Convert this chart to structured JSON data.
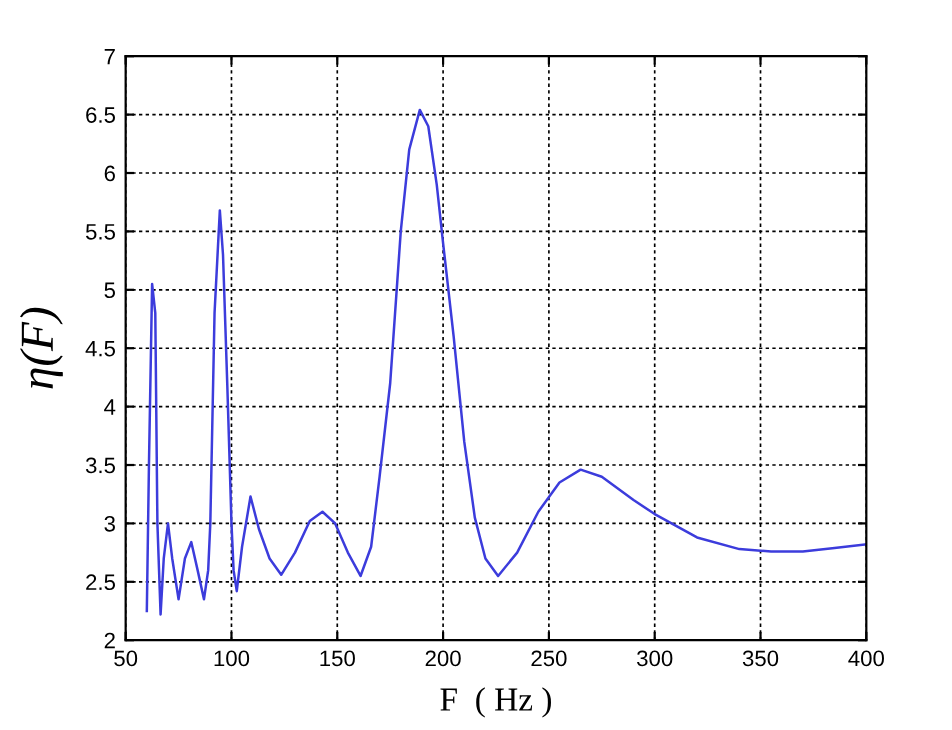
{
  "chart_data": {
    "type": "line",
    "xlabel": "F  ( Hz )",
    "ylabel": "η(F)",
    "x": [
      60,
      61,
      62.5,
      64,
      65,
      66.5,
      68,
      70,
      72,
      75,
      78,
      81,
      84,
      87,
      89,
      90,
      92,
      94.5,
      96,
      98,
      100,
      101,
      102.5,
      105,
      109,
      113,
      118,
      123.5,
      130,
      137,
      143,
      149,
      155,
      161,
      166,
      170,
      175,
      180,
      184,
      189,
      193,
      197,
      200,
      205,
      210,
      215,
      220,
      226,
      235,
      245,
      255,
      265,
      275,
      290,
      300,
      320,
      340,
      355,
      370,
      385,
      400
    ],
    "series": [
      {
        "color": "#3c3cdc",
        "values": [
          2.25,
          3.5,
          5.05,
          4.8,
          3.0,
          2.22,
          2.7,
          3.0,
          2.7,
          2.35,
          2.7,
          2.84,
          2.6,
          2.35,
          2.6,
          3.0,
          4.8,
          5.68,
          5.3,
          4.2,
          3.0,
          2.6,
          2.42,
          2.8,
          3.23,
          2.95,
          2.7,
          2.56,
          2.75,
          3.02,
          3.1,
          3.0,
          2.75,
          2.55,
          2.8,
          3.4,
          4.2,
          5.5,
          6.2,
          6.54,
          6.4,
          5.9,
          5.4,
          4.6,
          3.7,
          3.05,
          2.7,
          2.55,
          2.75,
          3.1,
          3.35,
          3.46,
          3.4,
          3.2,
          3.08,
          2.88,
          2.78,
          2.76,
          2.76,
          2.79,
          2.82
        ]
      }
    ],
    "xlim": [
      50,
      400
    ],
    "ylim": [
      2,
      7
    ],
    "xticks": [
      50,
      100,
      150,
      200,
      250,
      300,
      350,
      400
    ],
    "yticks": [
      2,
      2.5,
      3,
      3.5,
      4,
      4.5,
      5,
      5.5,
      6,
      6.5,
      7
    ],
    "grid": true,
    "line_style": "solid",
    "marker": "none",
    "legend": false
  }
}
